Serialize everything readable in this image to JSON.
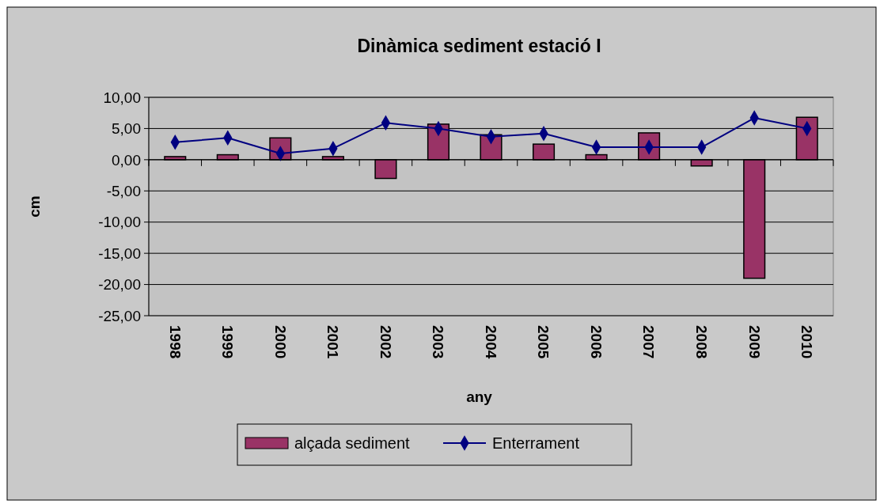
{
  "chart_data": {
    "type": "bar",
    "title": "Dinàmica sediment estació I",
    "xlabel": "any",
    "ylabel": "cm",
    "categories": [
      "1998",
      "1999",
      "2000",
      "2001",
      "2002",
      "2003",
      "2004",
      "2005",
      "2006",
      "2007",
      "2008",
      "2009",
      "2010"
    ],
    "series": [
      {
        "name": "alçada sediment",
        "color": "#993366",
        "values": [
          0.5,
          0.8,
          3.5,
          0.5,
          -3.0,
          5.7,
          4.0,
          2.5,
          0.8,
          4.3,
          -1.0,
          -19.0,
          6.8
        ]
      },
      {
        "name": "Enterrament",
        "type": "line",
        "color": "#000080",
        "marker": "diamond",
        "values": [
          2.8,
          3.5,
          1.0,
          1.8,
          5.9,
          5.0,
          3.7,
          4.2,
          2.0,
          2.0,
          2.0,
          6.7,
          5.0
        ]
      }
    ],
    "ylim": [
      -25,
      10
    ],
    "yticks": [
      {
        "value": -25,
        "label": "-25,00"
      },
      {
        "value": -20,
        "label": "-20,00"
      },
      {
        "value": -15,
        "label": "-15,00"
      },
      {
        "value": -10,
        "label": "-10,00"
      },
      {
        "value": -5,
        "label": "-5,00"
      },
      {
        "value": 0,
        "label": "0,00"
      },
      {
        "value": 5,
        "label": "5,00"
      },
      {
        "value": 10,
        "label": "10,00"
      }
    ],
    "grid": "y",
    "legend": "bottom"
  }
}
